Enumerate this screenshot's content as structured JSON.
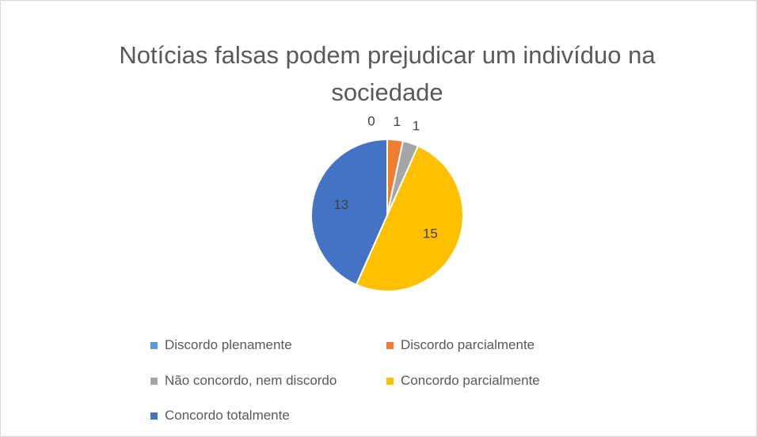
{
  "chart_data": {
    "type": "pie",
    "title": "Notícias falsas podem prejudicar um indivíduo na sociedade",
    "categories": [
      "Discordo plenamente",
      "Discordo parcialmente",
      "Não concordo, nem discordo",
      "Concordo parcialmente",
      "Concordo totalmente"
    ],
    "values": [
      0,
      1,
      1,
      15,
      13
    ],
    "colors": [
      "#5b9bd5",
      "#ed7d31",
      "#a5a5a5",
      "#ffc000",
      "#4472c4"
    ],
    "legend": "bottom"
  }
}
